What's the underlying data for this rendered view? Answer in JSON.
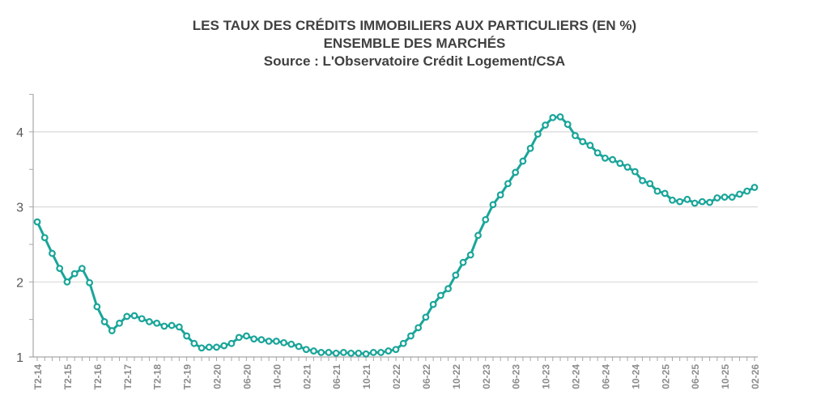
{
  "chart_data": {
    "type": "line",
    "title": "LES TAUX DES CRÉDITS IMMOBILIERS AUX PARTICULIERS (EN %)",
    "subtitle": "ENSEMBLE DES MARCHÉS",
    "source": "Source : L'Observatoire Crédit Logement/CSA",
    "xlabel": "",
    "ylabel": "",
    "ylim": [
      1,
      4.5
    ],
    "yticks": [
      1,
      2,
      3,
      4
    ],
    "grid": true,
    "x_tick_labels": [
      "T2-14",
      "T2-15",
      "T2-16",
      "T2-17",
      "T2-18",
      "T2-19",
      "02-20",
      "06-20",
      "10-20",
      "02-21",
      "06-21",
      "10-21",
      "02-22",
      "06-22",
      "10-22",
      "02-23",
      "06-23",
      "10-23",
      "02-24",
      "06-24",
      "10-24",
      "02-25",
      "06-25",
      "10-25",
      "02-26"
    ],
    "x_tick_every": 4,
    "color": "#1aa59a",
    "values": [
      2.8,
      2.59,
      2.38,
      2.18,
      2.0,
      2.11,
      2.18,
      1.99,
      1.67,
      1.47,
      1.35,
      1.45,
      1.54,
      1.55,
      1.51,
      1.47,
      1.45,
      1.41,
      1.42,
      1.4,
      1.28,
      1.18,
      1.12,
      1.13,
      1.13,
      1.15,
      1.18,
      1.26,
      1.28,
      1.24,
      1.23,
      1.21,
      1.21,
      1.19,
      1.17,
      1.14,
      1.1,
      1.08,
      1.06,
      1.06,
      1.05,
      1.06,
      1.05,
      1.05,
      1.04,
      1.06,
      1.06,
      1.08,
      1.1,
      1.18,
      1.28,
      1.39,
      1.53,
      1.7,
      1.82,
      1.91,
      2.09,
      2.26,
      2.36,
      2.62,
      2.83,
      3.03,
      3.16,
      3.31,
      3.46,
      3.61,
      3.78,
      3.97,
      4.09,
      4.19,
      4.2,
      4.1,
      3.95,
      3.87,
      3.82,
      3.72,
      3.65,
      3.63,
      3.58,
      3.53,
      3.47,
      3.35,
      3.31,
      3.21,
      3.18,
      3.09,
      3.07,
      3.1,
      3.05,
      3.07,
      3.06,
      3.12,
      3.13,
      3.13,
      3.17,
      3.21,
      3.26
    ]
  }
}
